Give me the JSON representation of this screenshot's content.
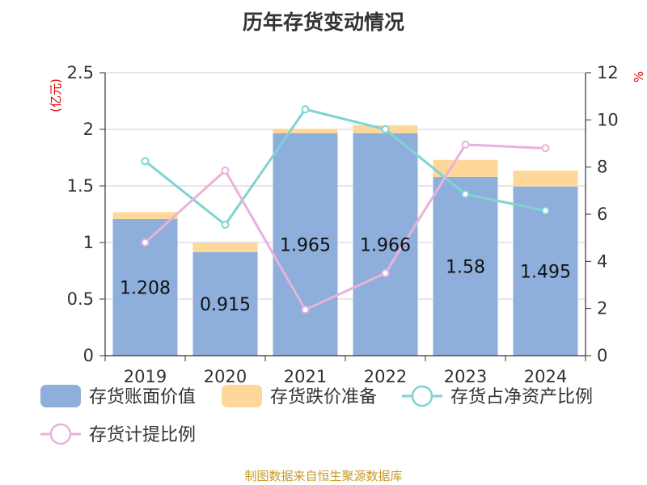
{
  "chart_data": {
    "type": "bar",
    "title": "历年存货变动情况",
    "left_unit": "(亿元)",
    "right_unit": "%",
    "categories": [
      "2019",
      "2020",
      "2021",
      "2022",
      "2023",
      "2024"
    ],
    "left_axis": {
      "min": 0,
      "max": 2.5,
      "ticks": [
        "0",
        "0.5",
        "1",
        "1.5",
        "2",
        "2.5"
      ]
    },
    "right_axis": {
      "min": 0,
      "max": 12,
      "ticks": [
        "0",
        "2",
        "4",
        "6",
        "8",
        "10",
        "12"
      ]
    },
    "bar_labels": [
      "1.208",
      "0.915",
      "1.965",
      "1.966",
      "1.58",
      "1.495"
    ],
    "series": [
      {
        "name": "存货账面价值",
        "kind": "bar",
        "axis": "left",
        "color": "#8eaedb",
        "values": [
          1.208,
          0.915,
          1.965,
          1.966,
          1.58,
          1.495
        ]
      },
      {
        "name": "存货跌价准备",
        "kind": "bar-stack",
        "axis": "left",
        "color": "#fdd898",
        "values": [
          0.06,
          0.08,
          0.04,
          0.07,
          0.15,
          0.14
        ]
      },
      {
        "name": "存货占净资产比例",
        "kind": "line",
        "axis": "right",
        "color": "#7fd3d3",
        "values": [
          8.25,
          5.55,
          10.45,
          9.6,
          6.85,
          6.15
        ]
      },
      {
        "name": "存货计提比例",
        "kind": "line",
        "axis": "right",
        "color": "#e6b3dc",
        "values": [
          4.8,
          7.85,
          1.95,
          3.5,
          8.95,
          8.8
        ]
      }
    ],
    "grid": true,
    "legend_position": "bottom"
  },
  "source": "制图数据来自恒生聚源数据库"
}
